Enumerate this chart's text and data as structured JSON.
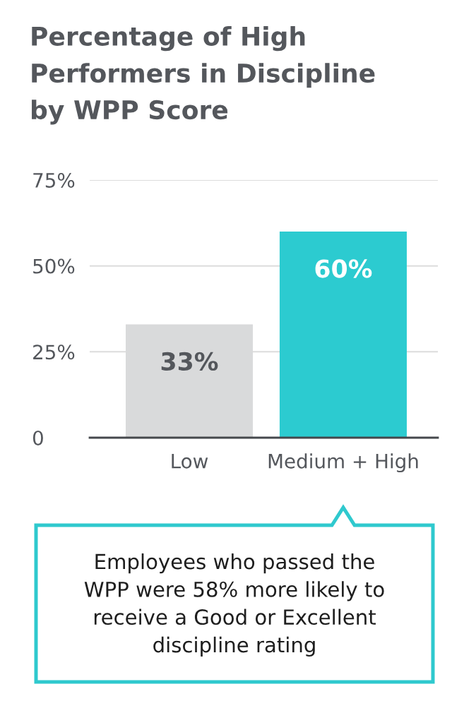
{
  "chart_data": {
    "type": "bar",
    "title": "Percentage of High Performers in Discipline by WPP Score",
    "categories": [
      "Low",
      "Medium + High"
    ],
    "values": [
      33,
      60
    ],
    "colors": [
      "#d9dadb",
      "#2ccbd0"
    ],
    "value_labels": [
      "33%",
      "60%"
    ],
    "ylim": [
      0,
      75
    ],
    "yticks": [
      0,
      {
        "value": 25,
        "label": "25%"
      },
      {
        "value": 50,
        "label": "50%"
      },
      {
        "value": 75,
        "label": "75%"
      }
    ],
    "grid": "y",
    "annotations": [
      "Employees who passed the WPP were 58% more likely to receive a Good or Excellent discipline rating"
    ]
  }
}
